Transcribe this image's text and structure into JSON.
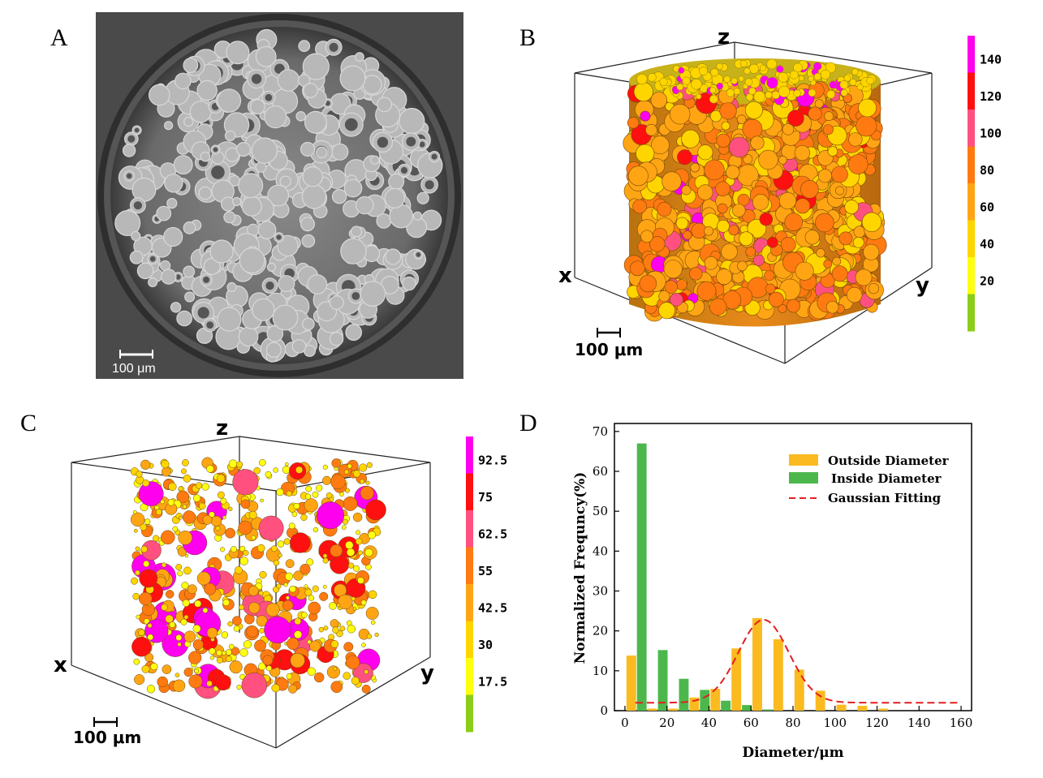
{
  "panels": {
    "A": {
      "letter": "A",
      "scale_bar_label": "100 μm"
    },
    "B": {
      "letter": "B",
      "axis_x": "x",
      "axis_y": "y",
      "axis_z": "z",
      "scale_bar_label": "100 μm",
      "colorbar": {
        "labels": [
          "140",
          "120",
          "100",
          "80",
          "60",
          "40",
          "20"
        ],
        "colors": [
          "#ff00ee",
          "#ff1010",
          "#ff5080",
          "#ff7a10",
          "#ffa514",
          "#ffd500",
          "#ffff10",
          "#8ccc1a"
        ]
      }
    },
    "C": {
      "letter": "C",
      "axis_x": "x",
      "axis_y": "y",
      "axis_z": "z",
      "scale_bar_label": "100 μm",
      "colorbar": {
        "labels": [
          "92.5",
          "75",
          "62.5",
          "55",
          "42.5",
          "30",
          "17.5"
        ],
        "colors": [
          "#ff00ee",
          "#ff1010",
          "#ff5080",
          "#ff7a10",
          "#ffa514",
          "#ffd500",
          "#ffff10",
          "#8ccc1a"
        ]
      }
    },
    "D": {
      "letter": "D"
    }
  },
  "chart_data": {
    "type": "bar",
    "xlabel": "Diameter/μm",
    "ylabel": "Normalized Frequncy(%)",
    "xlim": [
      -5,
      165
    ],
    "ylim": [
      0,
      72
    ],
    "xticks": [
      0,
      20,
      40,
      60,
      80,
      100,
      120,
      140,
      160
    ],
    "yticks": [
      0,
      10,
      20,
      30,
      40,
      50,
      60,
      70
    ],
    "legend_position": "top-right",
    "colors": {
      "outside": "#fbba20",
      "inside": "#4cb84c",
      "fit": "#e41f1f"
    },
    "series": [
      {
        "name": "Outside Diameter",
        "x": [
          3,
          13,
          23,
          33,
          43,
          53,
          63,
          73,
          83,
          93,
          103,
          113,
          123,
          133,
          143,
          153
        ],
        "values": [
          13.8,
          0.5,
          0.5,
          3.3,
          5.5,
          15.6,
          23.2,
          17.9,
          10.3,
          5.0,
          1.5,
          1.2,
          0.5,
          0,
          0,
          0
        ]
      },
      {
        "name": "Inside Diameter",
        "x": [
          8,
          18,
          28,
          38,
          48,
          58,
          68
        ],
        "values": [
          67,
          15.2,
          8.0,
          5.2,
          2.5,
          1.4,
          0.3
        ]
      },
      {
        "name": "Gaussian Fitting",
        "baseline": 2,
        "amplitude": 20.8,
        "center": 66,
        "sigma": 12,
        "x_range": [
          5,
          160
        ]
      }
    ]
  }
}
